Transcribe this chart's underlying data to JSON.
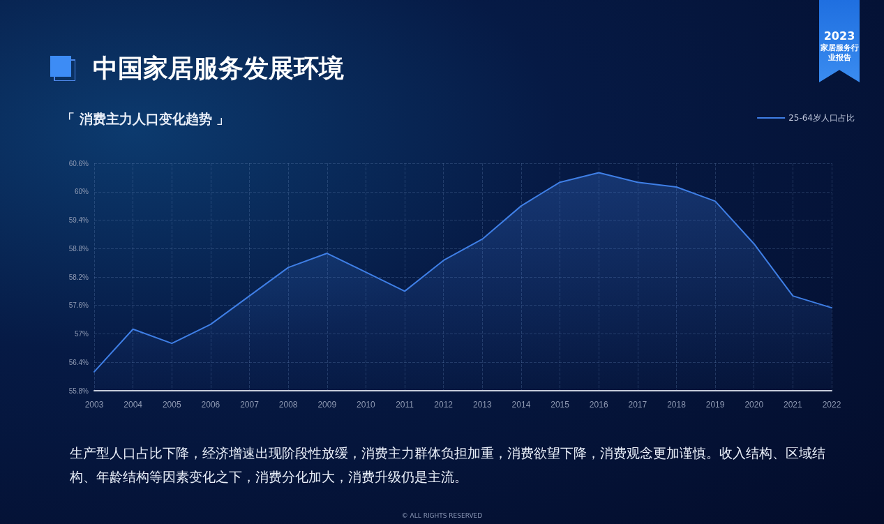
{
  "chart_data": {
    "type": "area",
    "title": "中国家居服务发展环境",
    "subtitle": "「 消费主力人口变化趋势 」",
    "annotations": [
      "2023 家居服务行业报告",
      "生产型人口占比下降，经济增速出现阶段性放缓，消费主力群体负担加重，消费欲望下降，消费观念更加谨慎。收入结构、区域结构、年龄结构等因素变化之下，消费分化加大，消费升级仍是主流。",
      "© ALL RIGHTS RESERVED"
    ],
    "categories": [
      "2003",
      "2004",
      "2005",
      "2006",
      "2007",
      "2008",
      "2009",
      "2010",
      "2011",
      "2012",
      "2013",
      "2014",
      "2015",
      "2016",
      "2017",
      "2018",
      "2019",
      "2020",
      "2021",
      "2022"
    ],
    "series": [
      {
        "name": "25-64岁人口占比",
        "color": "#3f7fe6",
        "values": [
          56.2,
          57.1,
          56.8,
          57.2,
          57.8,
          58.4,
          58.7,
          58.3,
          57.9,
          58.55,
          59.0,
          59.7,
          60.2,
          60.4,
          60.2,
          60.1,
          59.8,
          58.9,
          57.8,
          57.55
        ]
      }
    ],
    "ylim": [
      55.8,
      60.6
    ],
    "yticks": [
      {
        "value": 55.8,
        "label": "55.8%"
      },
      {
        "value": 56.4,
        "label": "56.4%"
      },
      {
        "value": 57,
        "label": "57%"
      },
      {
        "value": 57.6,
        "label": "57.6%"
      },
      {
        "value": 58.2,
        "label": "58.2%"
      },
      {
        "value": 58.8,
        "label": "58.8%"
      },
      {
        "value": 59.4,
        "label": "59.4%"
      },
      {
        "value": 60,
        "label": "60%"
      },
      {
        "value": 60.6,
        "label": "60.6%"
      }
    ],
    "grid": true,
    "legend": "top right",
    "marker": "none",
    "line_style": "solid"
  }
}
